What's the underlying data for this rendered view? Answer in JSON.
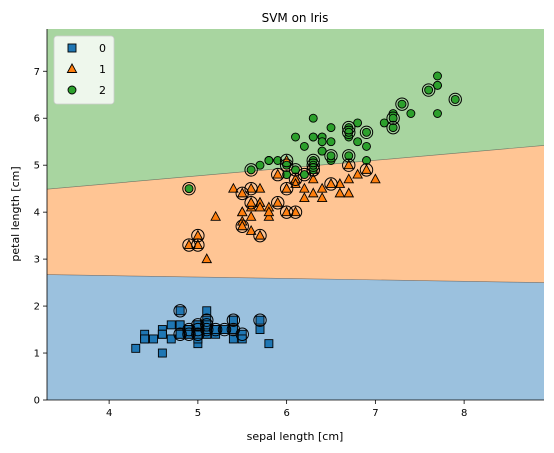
{
  "chart_data": {
    "type": "scatter",
    "title": "SVM on Iris",
    "xlabel": "sepal length [cm]",
    "ylabel": "petal length [cm]",
    "xlim": [
      3.3,
      8.9
    ],
    "ylim": [
      0,
      7.9
    ],
    "x_ticks": [
      "4",
      "5",
      "6",
      "7",
      "8"
    ],
    "y_ticks": [
      "0",
      "1",
      "2",
      "3",
      "4",
      "5",
      "6",
      "7"
    ],
    "grid": false,
    "legend_position": "top-left",
    "regions": [
      {
        "class": "0",
        "color": "#9bc1de"
      },
      {
        "class": "1",
        "color": "#ffc594"
      },
      {
        "class": "2",
        "color": "#a8d5a0"
      }
    ],
    "decision_boundaries": [
      {
        "between": [
          "0",
          "1"
        ],
        "points": [
          [
            3.3,
            2.67
          ],
          [
            8.9,
            2.5
          ]
        ]
      },
      {
        "between": [
          "1",
          "2"
        ],
        "points": [
          [
            3.3,
            4.49
          ],
          [
            8.9,
            5.42
          ]
        ]
      }
    ],
    "series": [
      {
        "name": "0",
        "marker": "square",
        "color": "#1f77b4",
        "points": [
          [
            5.1,
            1.4
          ],
          [
            4.9,
            1.4
          ],
          [
            4.7,
            1.3
          ],
          [
            4.6,
            1.5
          ],
          [
            5.0,
            1.4
          ],
          [
            5.4,
            1.7
          ],
          [
            4.6,
            1.4
          ],
          [
            5.0,
            1.5
          ],
          [
            4.4,
            1.4
          ],
          [
            4.9,
            1.5
          ],
          [
            5.4,
            1.5
          ],
          [
            4.8,
            1.6
          ],
          [
            4.8,
            1.4
          ],
          [
            4.3,
            1.1
          ],
          [
            5.8,
            1.2
          ],
          [
            5.7,
            1.5
          ],
          [
            5.4,
            1.3
          ],
          [
            5.1,
            1.4
          ],
          [
            5.7,
            1.7
          ],
          [
            5.1,
            1.5
          ],
          [
            5.4,
            1.7
          ],
          [
            5.1,
            1.5
          ],
          [
            4.6,
            1.0
          ],
          [
            5.1,
            1.7
          ],
          [
            4.8,
            1.9
          ],
          [
            5.0,
            1.6
          ],
          [
            5.0,
            1.6
          ],
          [
            5.2,
            1.5
          ],
          [
            5.2,
            1.4
          ],
          [
            4.7,
            1.6
          ],
          [
            4.8,
            1.6
          ],
          [
            5.4,
            1.5
          ],
          [
            5.2,
            1.5
          ],
          [
            5.5,
            1.4
          ],
          [
            4.9,
            1.5
          ],
          [
            5.0,
            1.2
          ],
          [
            5.5,
            1.3
          ],
          [
            4.9,
            1.4
          ],
          [
            4.4,
            1.3
          ],
          [
            5.1,
            1.5
          ],
          [
            5.0,
            1.3
          ],
          [
            4.5,
            1.3
          ],
          [
            4.4,
            1.3
          ],
          [
            5.0,
            1.6
          ],
          [
            5.1,
            1.9
          ],
          [
            4.8,
            1.4
          ],
          [
            5.1,
            1.6
          ],
          [
            4.6,
            1.4
          ],
          [
            5.3,
            1.5
          ],
          [
            5.0,
            1.4
          ]
        ]
      },
      {
        "name": "1",
        "marker": "triangle",
        "color": "#ff7f0e",
        "points": [
          [
            7.0,
            4.7
          ],
          [
            6.4,
            4.5
          ],
          [
            6.9,
            4.9
          ],
          [
            5.5,
            4.0
          ],
          [
            6.5,
            4.6
          ],
          [
            5.7,
            4.5
          ],
          [
            6.3,
            4.7
          ],
          [
            4.9,
            3.3
          ],
          [
            6.6,
            4.6
          ],
          [
            5.2,
            3.9
          ],
          [
            5.0,
            3.5
          ],
          [
            5.9,
            4.2
          ],
          [
            6.0,
            4.0
          ],
          [
            6.1,
            4.7
          ],
          [
            5.6,
            3.6
          ],
          [
            6.7,
            4.4
          ],
          [
            5.6,
            4.5
          ],
          [
            5.8,
            4.1
          ],
          [
            6.2,
            4.5
          ],
          [
            5.6,
            3.9
          ],
          [
            5.9,
            4.8
          ],
          [
            6.1,
            4.0
          ],
          [
            6.3,
            4.9
          ],
          [
            6.1,
            4.7
          ],
          [
            6.4,
            4.3
          ],
          [
            6.6,
            4.4
          ],
          [
            6.8,
            4.8
          ],
          [
            6.7,
            5.0
          ],
          [
            6.0,
            4.5
          ],
          [
            5.7,
            3.5
          ],
          [
            5.5,
            3.8
          ],
          [
            5.5,
            3.7
          ],
          [
            5.8,
            3.9
          ],
          [
            6.0,
            5.1
          ],
          [
            5.4,
            4.5
          ],
          [
            6.0,
            4.5
          ],
          [
            6.7,
            4.7
          ],
          [
            6.3,
            4.4
          ],
          [
            5.6,
            4.1
          ],
          [
            5.5,
            4.0
          ],
          [
            5.5,
            4.4
          ],
          [
            6.1,
            4.6
          ],
          [
            5.8,
            4.0
          ],
          [
            5.0,
            3.3
          ],
          [
            5.6,
            4.2
          ],
          [
            5.7,
            4.2
          ],
          [
            5.7,
            4.2
          ],
          [
            6.2,
            4.3
          ],
          [
            5.1,
            3.0
          ],
          [
            5.7,
            4.1
          ]
        ]
      },
      {
        "name": "2",
        "marker": "circle",
        "color": "#2ca02c",
        "points": [
          [
            6.3,
            6.0
          ],
          [
            5.8,
            5.1
          ],
          [
            7.1,
            5.9
          ],
          [
            6.3,
            5.6
          ],
          [
            6.5,
            5.8
          ],
          [
            7.6,
            6.6
          ],
          [
            4.9,
            4.5
          ],
          [
            7.3,
            6.3
          ],
          [
            6.7,
            5.8
          ],
          [
            7.2,
            6.1
          ],
          [
            6.5,
            5.1
          ],
          [
            6.4,
            5.3
          ],
          [
            6.8,
            5.5
          ],
          [
            5.7,
            5.0
          ],
          [
            5.8,
            5.1
          ],
          [
            6.4,
            5.3
          ],
          [
            6.5,
            5.5
          ],
          [
            7.7,
            6.7
          ],
          [
            7.7,
            6.9
          ],
          [
            6.0,
            5.0
          ],
          [
            6.9,
            5.7
          ],
          [
            5.6,
            4.9
          ],
          [
            7.7,
            6.7
          ],
          [
            6.3,
            4.9
          ],
          [
            6.7,
            5.7
          ],
          [
            7.2,
            6.0
          ],
          [
            6.2,
            4.8
          ],
          [
            6.1,
            4.9
          ],
          [
            6.4,
            5.6
          ],
          [
            7.2,
            5.8
          ],
          [
            7.4,
            6.1
          ],
          [
            7.9,
            6.4
          ],
          [
            6.4,
            5.6
          ],
          [
            6.3,
            5.1
          ],
          [
            6.1,
            5.6
          ],
          [
            7.7,
            6.1
          ],
          [
            6.3,
            5.6
          ],
          [
            6.4,
            5.5
          ],
          [
            6.0,
            4.8
          ],
          [
            6.9,
            5.4
          ],
          [
            6.7,
            5.6
          ],
          [
            6.9,
            5.1
          ],
          [
            5.8,
            5.1
          ],
          [
            6.8,
            5.9
          ],
          [
            6.7,
            5.7
          ],
          [
            6.7,
            5.2
          ],
          [
            6.3,
            5.0
          ],
          [
            6.5,
            5.2
          ],
          [
            6.2,
            5.4
          ],
          [
            5.9,
            5.1
          ]
        ]
      }
    ],
    "support_vectors": [
      [
        4.8,
        1.9
      ],
      [
        5.7,
        1.7
      ],
      [
        5.4,
        1.7
      ],
      [
        5.1,
        1.7
      ],
      [
        5.0,
        1.6
      ],
      [
        5.1,
        1.6
      ],
      [
        4.8,
        1.4
      ],
      [
        4.9,
        1.5
      ],
      [
        5.0,
        1.5
      ],
      [
        5.2,
        1.5
      ],
      [
        5.3,
        1.5
      ],
      [
        5.4,
        1.5
      ],
      [
        5.5,
        1.4
      ],
      [
        5.0,
        1.4
      ],
      [
        5.1,
        1.5
      ],
      [
        4.9,
        1.4
      ],
      [
        5.0,
        3.3
      ],
      [
        4.9,
        3.3
      ],
      [
        5.0,
        3.5
      ],
      [
        5.5,
        3.7
      ],
      [
        5.7,
        3.5
      ],
      [
        5.5,
        4.4
      ],
      [
        5.6,
        4.5
      ],
      [
        5.9,
        4.8
      ],
      [
        6.0,
        4.5
      ],
      [
        6.0,
        5.1
      ],
      [
        6.1,
        4.7
      ],
      [
        6.2,
        4.8
      ],
      [
        6.3,
        4.9
      ],
      [
        6.5,
        4.6
      ],
      [
        6.7,
        5.0
      ],
      [
        6.9,
        4.9
      ],
      [
        6.0,
        4.0
      ],
      [
        6.1,
        4.0
      ],
      [
        5.9,
        4.2
      ],
      [
        5.6,
        4.2
      ],
      [
        4.9,
        4.5
      ],
      [
        5.6,
        4.9
      ],
      [
        6.0,
        5.0
      ],
      [
        6.3,
        4.9
      ],
      [
        6.1,
        4.9
      ],
      [
        6.3,
        5.0
      ],
      [
        6.5,
        5.2
      ],
      [
        6.3,
        5.1
      ],
      [
        6.7,
        5.2
      ],
      [
        6.7,
        5.7
      ],
      [
        6.9,
        5.7
      ],
      [
        6.7,
        5.8
      ],
      [
        7.2,
        5.8
      ],
      [
        7.2,
        6.0
      ],
      [
        7.3,
        6.3
      ],
      [
        7.6,
        6.6
      ],
      [
        7.9,
        6.4
      ]
    ]
  }
}
